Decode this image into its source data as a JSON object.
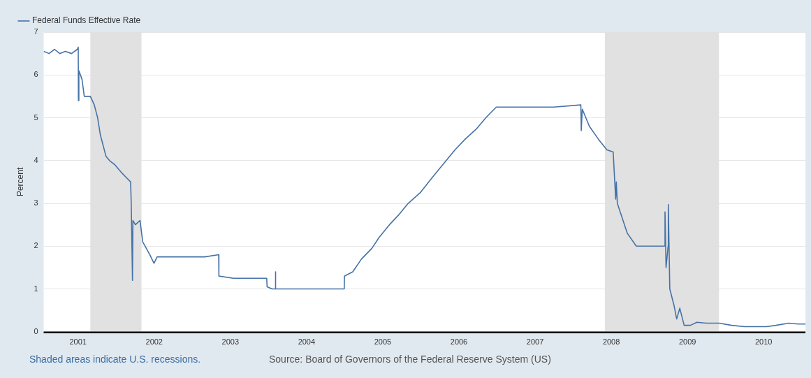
{
  "chart_data": {
    "type": "line",
    "ylabel": "Percent",
    "legend": "top left",
    "grid": "y",
    "xlim": [
      "2000-07-20",
      "2010-07-20"
    ],
    "xticks": [
      {
        "value": "2001",
        "label": "2001"
      },
      {
        "value": "2002",
        "label": "2002"
      },
      {
        "value": "2003",
        "label": "2003"
      },
      {
        "value": "2004",
        "label": "2004"
      },
      {
        "value": "2005",
        "label": "2005"
      },
      {
        "value": "2006",
        "label": "2006"
      },
      {
        "value": "2007",
        "label": "2007"
      },
      {
        "value": "2008",
        "label": "2008"
      },
      {
        "value": "2009",
        "label": "2009"
      },
      {
        "value": "2010",
        "label": "2010"
      }
    ],
    "ylim": [
      0,
      7
    ],
    "yticks": [
      0,
      1,
      2,
      3,
      4,
      5,
      6,
      7
    ],
    "bands": [
      {
        "axis": "x",
        "from": "2001-03-01",
        "to": "2001-11-01",
        "color": "#e1e1e1"
      },
      {
        "axis": "x",
        "from": "2007-12-01",
        "to": "2009-06-01",
        "color": "#e1e1e1"
      }
    ],
    "annotations": [
      "Shaded areas indicate U.S. recessions.",
      "Source: Board of Governors of the Federal Reserve System (US)"
    ],
    "series": [
      {
        "name": "Federal Funds Effective Rate",
        "color": "#4572a7",
        "x": [
          "2000-07-20",
          "2000-08-15",
          "2000-09-10",
          "2000-10-05",
          "2000-11-01",
          "2000-12-01",
          "2000-12-29",
          "2001-01-02",
          "2001-01-03",
          "2001-01-05",
          "2001-01-20",
          "2001-01-31",
          "2001-03-01",
          "2001-03-20",
          "2001-04-05",
          "2001-04-18",
          "2001-05-15",
          "2001-06-01",
          "2001-06-27",
          "2001-08-01",
          "2001-08-21",
          "2001-09-10",
          "2001-09-13",
          "2001-09-19",
          "2001-09-21",
          "2001-10-03",
          "2001-10-25",
          "2001-11-07",
          "2001-12-11",
          "2001-12-31",
          "2002-01-15",
          "2002-03-01",
          "2002-05-01",
          "2002-07-01",
          "2002-09-01",
          "2002-11-06",
          "2002-11-07",
          "2003-01-15",
          "2003-03-15",
          "2003-05-15",
          "2003-06-24",
          "2003-06-26",
          "2003-07-20",
          "2003-08-04",
          "2003-08-05",
          "2003-08-06",
          "2003-10-01",
          "2003-12-01",
          "2004-02-01",
          "2004-04-01",
          "2004-06-30",
          "2004-07-01",
          "2004-08-10",
          "2004-09-21",
          "2004-11-10",
          "2004-12-14",
          "2005-02-02",
          "2005-03-22",
          "2005-05-03",
          "2005-06-30",
          "2005-08-09",
          "2005-09-20",
          "2005-11-01",
          "2005-12-13",
          "2006-01-31",
          "2006-03-28",
          "2006-05-10",
          "2006-06-29",
          "2006-10-01",
          "2007-01-01",
          "2007-04-01",
          "2007-08-08",
          "2007-08-10",
          "2007-08-15",
          "2007-09-18",
          "2007-10-31",
          "2007-12-11",
          "2008-01-10",
          "2008-01-22",
          "2008-01-25",
          "2008-01-30",
          "2008-03-18",
          "2008-04-30",
          "2008-06-01",
          "2008-08-01",
          "2008-09-12",
          "2008-09-15",
          "2008-09-20",
          "2008-09-30",
          "2008-10-01",
          "2008-10-08",
          "2008-10-29",
          "2008-11-10",
          "2008-11-25",
          "2008-12-16",
          "2009-01-15",
          "2009-02-15",
          "2009-04-01",
          "2009-06-01",
          "2009-08-01",
          "2009-10-01",
          "2009-12-01",
          "2010-01-15",
          "2010-03-01",
          "2010-05-01",
          "2010-06-15",
          "2010-07-20"
        ],
        "values": [
          6.55,
          6.5,
          6.6,
          6.5,
          6.55,
          6.5,
          6.6,
          6.65,
          5.4,
          6.1,
          5.9,
          5.5,
          5.5,
          5.3,
          5.0,
          4.6,
          4.1,
          4.0,
          3.9,
          3.7,
          3.6,
          3.5,
          3.0,
          1.2,
          2.6,
          2.5,
          2.6,
          2.1,
          1.8,
          1.6,
          1.75,
          1.75,
          1.75,
          1.75,
          1.75,
          1.8,
          1.3,
          1.25,
          1.25,
          1.25,
          1.25,
          1.05,
          1.0,
          1.0,
          1.4,
          1.0,
          1.0,
          1.0,
          1.0,
          1.0,
          1.0,
          1.3,
          1.4,
          1.7,
          1.95,
          2.2,
          2.5,
          2.75,
          3.0,
          3.25,
          3.5,
          3.75,
          4.0,
          4.25,
          4.5,
          4.75,
          5.0,
          5.25,
          5.25,
          5.25,
          5.25,
          5.3,
          4.7,
          5.2,
          4.8,
          4.5,
          4.25,
          4.2,
          3.1,
          3.5,
          3.0,
          2.3,
          2.0,
          2.0,
          2.0,
          2.0,
          2.8,
          1.5,
          2.0,
          2.97,
          1.0,
          0.6,
          0.3,
          0.55,
          0.15,
          0.15,
          0.22,
          0.2,
          0.2,
          0.15,
          0.12,
          0.12,
          0.12,
          0.15,
          0.2,
          0.18,
          0.18
        ]
      }
    ]
  }
}
